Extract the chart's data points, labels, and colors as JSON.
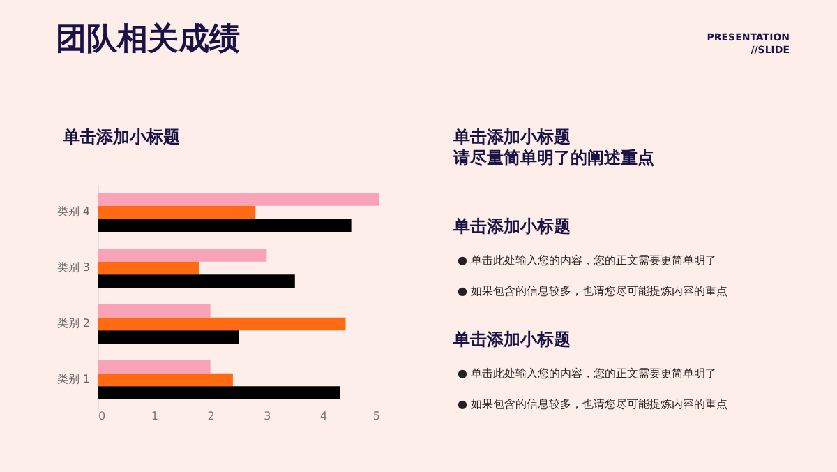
{
  "chart_data": {
    "type": "bar",
    "orientation": "horizontal",
    "title": "团队相关成绩",
    "subtitle": "单击添加小标题",
    "categories": [
      "类别 4",
      "类别 3",
      "类别 2",
      "类别 1"
    ],
    "series": [
      {
        "color": "#f9a3b8",
        "values": [
          5.0,
          3.0,
          2.0,
          2.0
        ]
      },
      {
        "color": "#ff6a13",
        "values": [
          2.8,
          1.8,
          4.4,
          2.4
        ]
      },
      {
        "color": "#000000",
        "values": [
          4.5,
          3.5,
          2.5,
          4.3
        ]
      }
    ],
    "xlim": [
      0,
      5
    ],
    "xticks": [
      0,
      1,
      2,
      3,
      4,
      5
    ],
    "grid": false,
    "legend": false,
    "annotations": [
      "PRESENTATION\n//SLIDE",
      "单击添加小标题",
      "请尽量简单明了的阐述重点",
      "单击添加小标题",
      "● 单击此处输入您的内容，您的正文需要更简单明了",
      "● 如果包含的信息较多，也请您尽可能提炼内容的重点",
      "单击添加小标题",
      "● 单击此处输入您的内容，您的正文需要更简单明了",
      "● 如果包含的信息较多，也请您尽可能提炼内容的重点"
    ]
  }
}
